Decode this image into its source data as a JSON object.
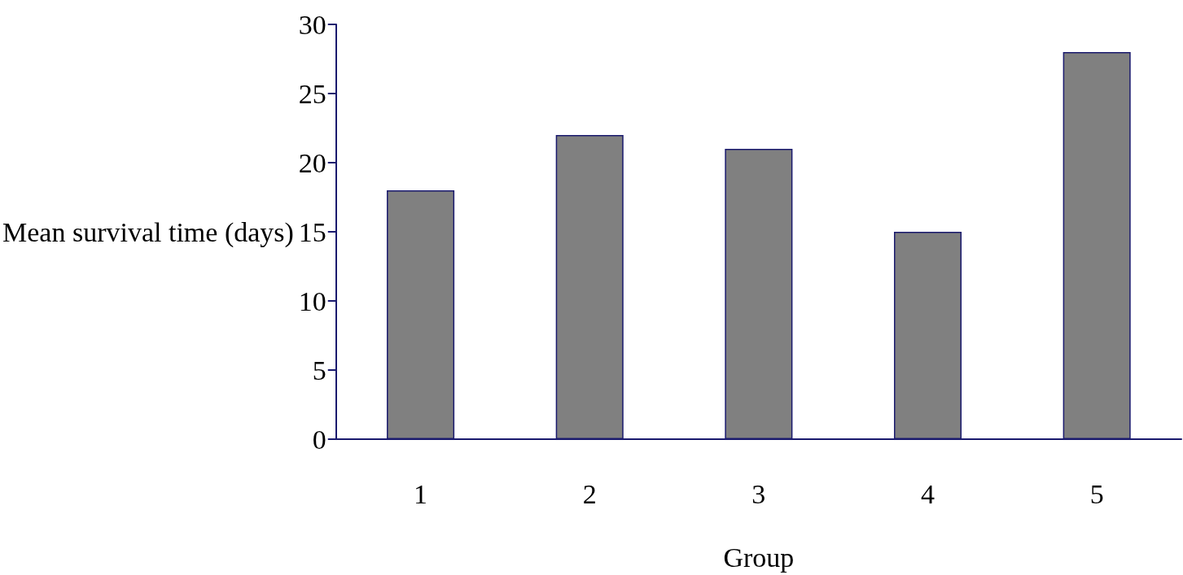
{
  "chart_data": {
    "type": "bar",
    "xlabel": "Group",
    "ylabel": "Mean survival time (days)",
    "categories": [
      "1",
      "2",
      "3",
      "4",
      "5"
    ],
    "values": [
      18,
      22,
      21,
      15,
      28
    ],
    "color": "#808080",
    "ylim": [
      0,
      30
    ],
    "yticks": [
      0,
      5,
      10,
      15,
      20,
      25,
      30
    ],
    "grid": false
  }
}
